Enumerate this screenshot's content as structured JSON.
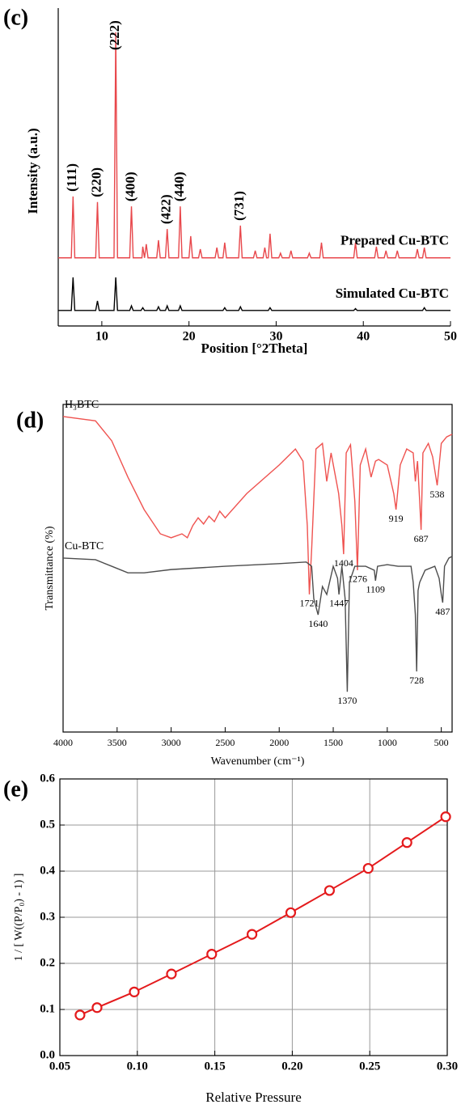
{
  "chart_data": [
    {
      "type": "line",
      "label": "(c)",
      "xlabel": "Position [°2Theta]",
      "ylabel": "Intensity (a.u.)",
      "xlim": [
        5,
        50
      ],
      "xticks": [
        10,
        20,
        30,
        40,
        50
      ],
      "ylim": [
        0,
        100
      ],
      "frame": "axes",
      "series": [
        {
          "name": "Prepared Cu-BTC",
          "color": "#e8474b",
          "x": [
            5,
            6.5,
            6.7,
            6.9,
            9.3,
            9.5,
            9.7,
            11.4,
            11.6,
            11.8,
            13.2,
            13.4,
            13.6,
            14.6,
            14.7,
            14.9,
            15.1,
            15.3,
            16.3,
            16.5,
            16.7,
            17.3,
            17.5,
            17.7,
            18.8,
            19.0,
            19.2,
            20.0,
            20.2,
            20.4,
            21.1,
            21.3,
            21.5,
            23.0,
            23.2,
            23.4,
            23.9,
            24.1,
            24.3,
            25.7,
            25.9,
            26.1,
            27.4,
            27.6,
            27.8,
            28.5,
            28.7,
            28.9,
            29.1,
            29.3,
            29.5,
            30.3,
            30.5,
            30.7,
            31.5,
            31.7,
            31.9,
            33.6,
            33.8,
            34.0,
            35.0,
            35.2,
            35.4,
            38.9,
            39.1,
            39.3,
            41.3,
            41.5,
            41.7,
            42.4,
            42.6,
            42.8,
            43.7,
            43.9,
            44.1,
            46.0,
            46.2,
            46.4,
            46.8,
            47.0,
            47.2,
            50
          ],
          "values": [
            22,
            22,
            41.8,
            22,
            22,
            40,
            22,
            22,
            94.8,
            22,
            22,
            38.6,
            22,
            22,
            25.6,
            22,
            26.4,
            22,
            22,
            27.7,
            22,
            22,
            31.3,
            22,
            22,
            38.6,
            22,
            22,
            29,
            22,
            22,
            24.8,
            22,
            22,
            25.3,
            22,
            22,
            26.9,
            22,
            22,
            32.4,
            22,
            22,
            24.3,
            22,
            22,
            25.3,
            22,
            22,
            29.8,
            22,
            22,
            23.5,
            22,
            22,
            24.3,
            22,
            22,
            23.5,
            22,
            22,
            26.9,
            22,
            22,
            26.9,
            22,
            22,
            25.6,
            22,
            22,
            24.3,
            22,
            22,
            24.3,
            22,
            22,
            24.8,
            22,
            22,
            25.3,
            22,
            22
          ],
          "annotations": [
            {
              "text": "(111)",
              "x": 6.7
            },
            {
              "text": "(220)",
              "x": 9.5
            },
            {
              "text": "(222)",
              "x": 11.6
            },
            {
              "text": "(400)",
              "x": 13.4
            },
            {
              "text": "(422)",
              "x": 17.5
            },
            {
              "text": "(440)",
              "x": 19.0
            },
            {
              "text": "(731)",
              "x": 25.9
            }
          ]
        },
        {
          "name": "Simulated Cu-BTC",
          "color": "#000000",
          "x": [
            5,
            6.5,
            6.7,
            6.9,
            9.3,
            9.5,
            9.7,
            11.4,
            11.6,
            11.8,
            13.2,
            13.4,
            13.6,
            14.5,
            14.7,
            14.9,
            16.3,
            16.5,
            16.7,
            17.3,
            17.5,
            17.7,
            18.8,
            19.0,
            19.2,
            23.9,
            24.1,
            24.3,
            25.7,
            25.9,
            26.1,
            29.1,
            29.3,
            29.5,
            38.9,
            39.1,
            39.3,
            46.8,
            47.0,
            47.2,
            50
          ],
          "values": [
            5,
            5,
            15.7,
            5,
            5,
            8.1,
            5,
            5,
            15.7,
            5,
            5,
            6.5,
            5,
            5,
            5.9,
            5,
            5,
            6.2,
            5,
            5,
            6.5,
            5,
            5,
            6.5,
            5,
            5,
            5.9,
            5,
            5,
            6.2,
            5,
            5,
            5.9,
            5,
            5,
            5.6,
            5,
            5,
            5.9,
            5,
            5
          ]
        }
      ]
    },
    {
      "type": "line",
      "label": "(d)",
      "xlabel": "Wavenumber (cm⁻¹)",
      "ylabel": "Transmittance (%)",
      "xlim": [
        4000,
        400
      ],
      "xticks": [
        4000,
        3500,
        3000,
        2500,
        2000,
        1500,
        1000,
        500
      ],
      "ylim": [
        0,
        100
      ],
      "frame": "box",
      "series": [
        {
          "name": "H₃BTC",
          "color": "#ef5350",
          "x": [
            4000,
            3700,
            3550,
            3400,
            3250,
            3100,
            3000,
            2900,
            2850,
            2800,
            2750,
            2700,
            2650,
            2600,
            2550,
            2500,
            2300,
            2000,
            1850,
            1780,
            1740,
            1721,
            1700,
            1660,
            1600,
            1560,
            1520,
            1450,
            1420,
            1404,
            1380,
            1340,
            1300,
            1276,
            1250,
            1200,
            1150,
            1109,
            1080,
            1000,
            940,
            919,
            880,
            820,
            760,
            740,
            720,
            700,
            687,
            670,
            620,
            580,
            538,
            500,
            450,
            400
          ],
          "values": [
            96.3,
            95,
            88.9,
            77.8,
            67.9,
            60.5,
            59.3,
            60.5,
            59.3,
            63,
            65.4,
            63.5,
            65.9,
            64.2,
            67.4,
            65.4,
            72.8,
            81.5,
            86.4,
            82.7,
            63,
            42,
            55.6,
            86.4,
            88.1,
            76.5,
            85.2,
            72.8,
            63,
            54.3,
            85.2,
            87.7,
            70.4,
            49.4,
            81.5,
            86.4,
            77.8,
            82.7,
            83.2,
            81.5,
            72.8,
            67.9,
            81.5,
            86.4,
            85.2,
            76.5,
            82.7,
            70.4,
            61.7,
            85.2,
            88.1,
            84,
            75.3,
            88.1,
            90.1,
            90.9
          ],
          "peaks": [
            1721,
            1404,
            1276,
            919,
            687,
            538
          ]
        },
        {
          "name": "Cu-BTC",
          "color": "#4d4d4d",
          "x": [
            4000,
            3700,
            3550,
            3400,
            3250,
            3000,
            2500,
            2000,
            1750,
            1700,
            1680,
            1640,
            1600,
            1560,
            1500,
            1460,
            1447,
            1420,
            1390,
            1370,
            1350,
            1300,
            1200,
            1120,
            1109,
            1090,
            1000,
            900,
            780,
            760,
            740,
            728,
            715,
            700,
            650,
            560,
            520,
            500,
            487,
            470,
            430,
            400
          ],
          "values": [
            53.1,
            52.6,
            50.6,
            48.6,
            48.6,
            49.6,
            50.6,
            51.4,
            51.9,
            50.6,
            40.7,
            35.8,
            44.4,
            42,
            50.6,
            46.9,
            42,
            50.6,
            40.7,
            12.3,
            45.7,
            50.6,
            50.6,
            49.4,
            46.2,
            50.6,
            51.1,
            50.6,
            50.6,
            45.7,
            35.8,
            18.5,
            43.2,
            45.7,
            49.4,
            50.6,
            46.9,
            42,
            39.5,
            50.6,
            53.1,
            53.6
          ],
          "peaks": [
            1640,
            1447,
            1109,
            1370,
            728,
            487
          ]
        }
      ]
    },
    {
      "type": "line",
      "label": "(e)",
      "xlabel": "Relative Pressure",
      "ylabel": "1 / [ W((P/P₀) - 1) ]",
      "xlim": [
        0.05,
        0.3
      ],
      "xticks": [
        0.05,
        {
          "value": 0.1,
          "label": "0.10"
        },
        0.15,
        {
          "value": 0.2,
          "label": "0.20"
        },
        0.25,
        {
          "value": 0.3,
          "label": "0.30"
        }
      ],
      "ylim": [
        0,
        0.6
      ],
      "yticks": [
        {
          "value": 0,
          "label": "0.0"
        },
        0.1,
        0.2,
        0.3,
        0.4,
        0.5,
        0.6
      ],
      "grid": true,
      "frame": "box",
      "markers": "circle",
      "series": [
        {
          "color": "#e41a1c",
          "x": [
            0.063,
            0.074,
            0.098,
            0.122,
            0.148,
            0.174,
            0.199,
            0.224,
            0.249,
            0.274,
            0.299
          ],
          "values": [
            0.088,
            0.104,
            0.138,
            0.177,
            0.22,
            0.263,
            0.31,
            0.358,
            0.406,
            0.462,
            0.518
          ]
        }
      ]
    }
  ]
}
